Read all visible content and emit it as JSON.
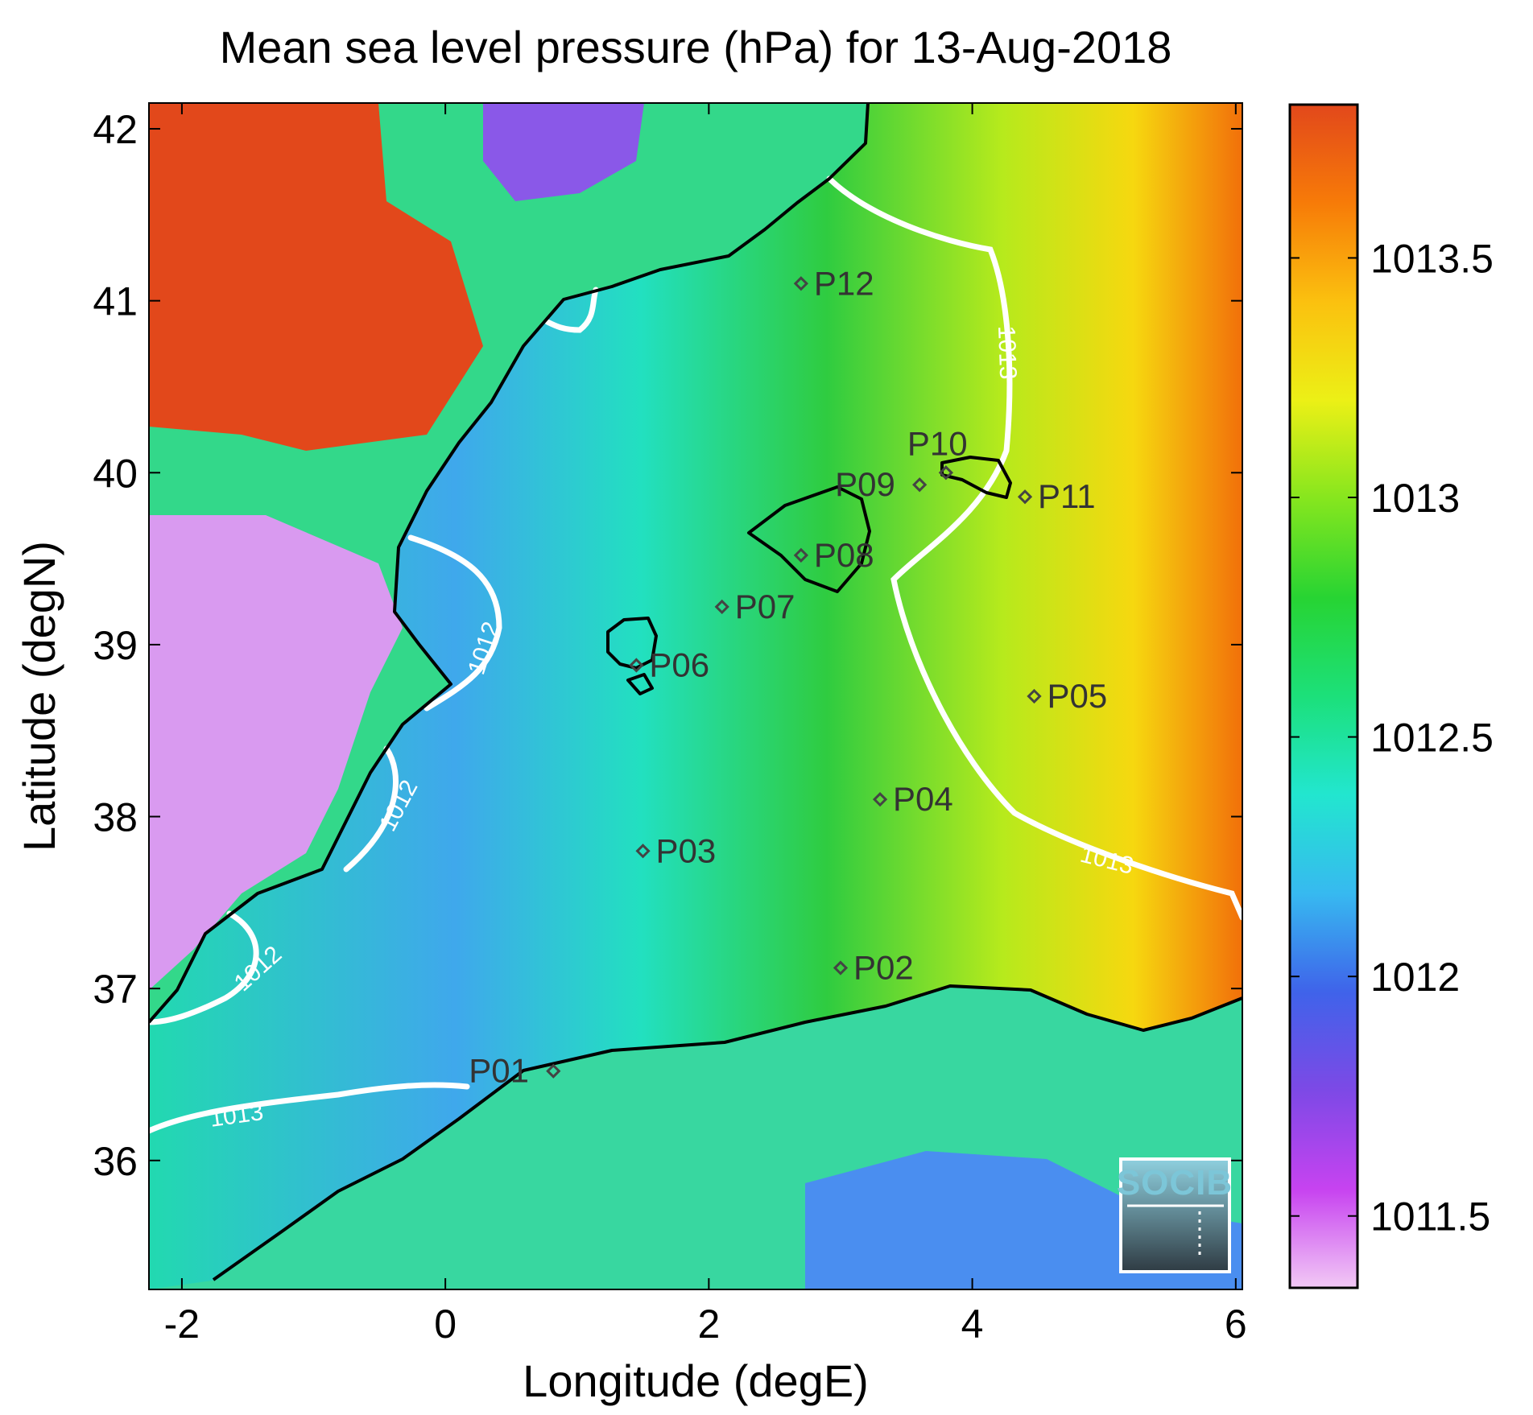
{
  "title": "Mean sea level pressure (hPa) for 13-Aug-2018",
  "x_axis": {
    "label": "Longitude (degE)",
    "min": -2.25,
    "max": 6.05,
    "ticks": [
      "-2",
      "0",
      "2",
      "4",
      "6"
    ],
    "tick_values": [
      -2,
      0,
      2,
      4,
      6
    ]
  },
  "y_axis": {
    "label": "Latitude (degN)",
    "min": 35.25,
    "max": 42.15,
    "ticks": [
      "36",
      "37",
      "38",
      "39",
      "40",
      "41",
      "42"
    ],
    "tick_values": [
      36,
      37,
      38,
      39,
      40,
      41,
      42
    ]
  },
  "colorbar": {
    "min": 1011.35,
    "max": 1013.82,
    "ticks": [
      "1011.5",
      "1012",
      "1012.5",
      "1013",
      "1013.5"
    ],
    "tick_values": [
      1011.5,
      1012,
      1012.5,
      1013,
      1013.5
    ],
    "colors": [
      "#f2c9f5",
      "#c743f0",
      "#7d49e6",
      "#3f63ea",
      "#37b9f0",
      "#22e6cf",
      "#1ce07a",
      "#27d433",
      "#86e61e",
      "#ecf016",
      "#fbc10f",
      "#f77b08",
      "#e2481b"
    ]
  },
  "stations": [
    {
      "name": "P01",
      "lon": 0.82,
      "lat": 36.52
    },
    {
      "name": "P02",
      "lon": 3.0,
      "lat": 37.12
    },
    {
      "name": "P03",
      "lon": 1.5,
      "lat": 37.8
    },
    {
      "name": "P04",
      "lon": 3.3,
      "lat": 38.1
    },
    {
      "name": "P05",
      "lon": 4.47,
      "lat": 38.7
    },
    {
      "name": "P06",
      "lon": 1.45,
      "lat": 38.88
    },
    {
      "name": "P07",
      "lon": 2.1,
      "lat": 39.22
    },
    {
      "name": "P08",
      "lon": 2.7,
      "lat": 39.52
    },
    {
      "name": "P09",
      "lon": 3.6,
      "lat": 39.93
    },
    {
      "name": "P10",
      "lon": 3.8,
      "lat": 40.0
    },
    {
      "name": "P11",
      "lon": 4.4,
      "lat": 39.86
    },
    {
      "name": "P12",
      "lon": 2.7,
      "lat": 41.1
    }
  ],
  "contour_labels": [
    "1013",
    "1012",
    "1012",
    "1012",
    "1013",
    "1013"
  ],
  "logo": {
    "text": "SOCIB"
  },
  "colors": {
    "coastline": "#000000",
    "contour": "#ffffff",
    "station_marker": "#444444"
  }
}
